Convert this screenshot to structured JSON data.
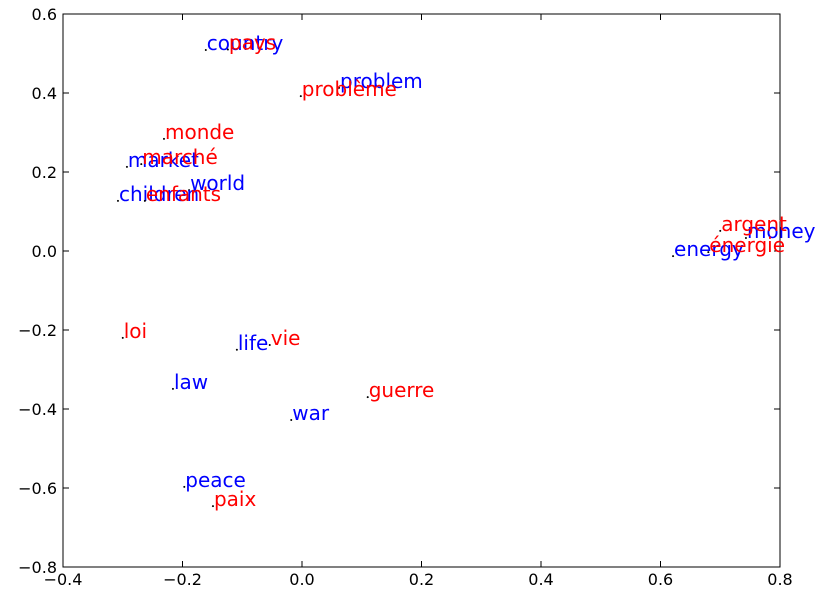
{
  "chart_data": {
    "type": "scatter",
    "series": [
      {
        "color": "#0000ff",
        "labels": [
          "country",
          "problem",
          "market",
          "world",
          "children",
          "money",
          "energy",
          "life",
          "law",
          "war",
          "peace"
        ],
        "x": [
          -0.161,
          0.062,
          -0.293,
          -0.189,
          -0.308,
          0.743,
          0.621,
          -0.109,
          -0.216,
          -0.018,
          -0.197
        ],
        "values": [
          0.509,
          0.413,
          0.213,
          0.154,
          0.127,
          0.033,
          -0.013,
          -0.25,
          -0.349,
          -0.428,
          -0.597
        ]
      },
      {
        "color": "#ff0000",
        "labels": [
          "pays",
          "problème",
          "monde",
          "marché",
          "enfants",
          "argent",
          "énergie",
          "loi",
          "vie",
          "guerre",
          "paix"
        ],
        "x": [
          -0.124,
          -0.002,
          -0.231,
          -0.269,
          -0.263,
          0.7,
          0.68,
          -0.3,
          -0.054,
          0.11,
          -0.149
        ],
        "values": [
          0.51,
          0.392,
          0.284,
          0.22,
          0.127,
          0.051,
          -0.003,
          -0.22,
          -0.238,
          -0.37,
          -0.646
        ]
      }
    ],
    "xlim": [
      -0.4,
      0.8
    ],
    "xticks": [
      {
        "value": -0.4,
        "label": "−0.4"
      },
      {
        "value": -0.2,
        "label": "−0.2"
      },
      {
        "value": 0.0,
        "label": "0.0"
      },
      0.2,
      0.4,
      0.6,
      0.8
    ],
    "ylim": [
      -0.8,
      0.6
    ],
    "yticks": [
      {
        "value": -0.8,
        "label": "−0.8"
      },
      {
        "value": -0.6,
        "label": "−0.6"
      },
      {
        "value": -0.4,
        "label": "−0.4"
      },
      {
        "value": -0.2,
        "label": "−0.2"
      },
      {
        "value": 0.0,
        "label": "0.0"
      },
      0.2,
      0.4,
      0.6
    ]
  }
}
